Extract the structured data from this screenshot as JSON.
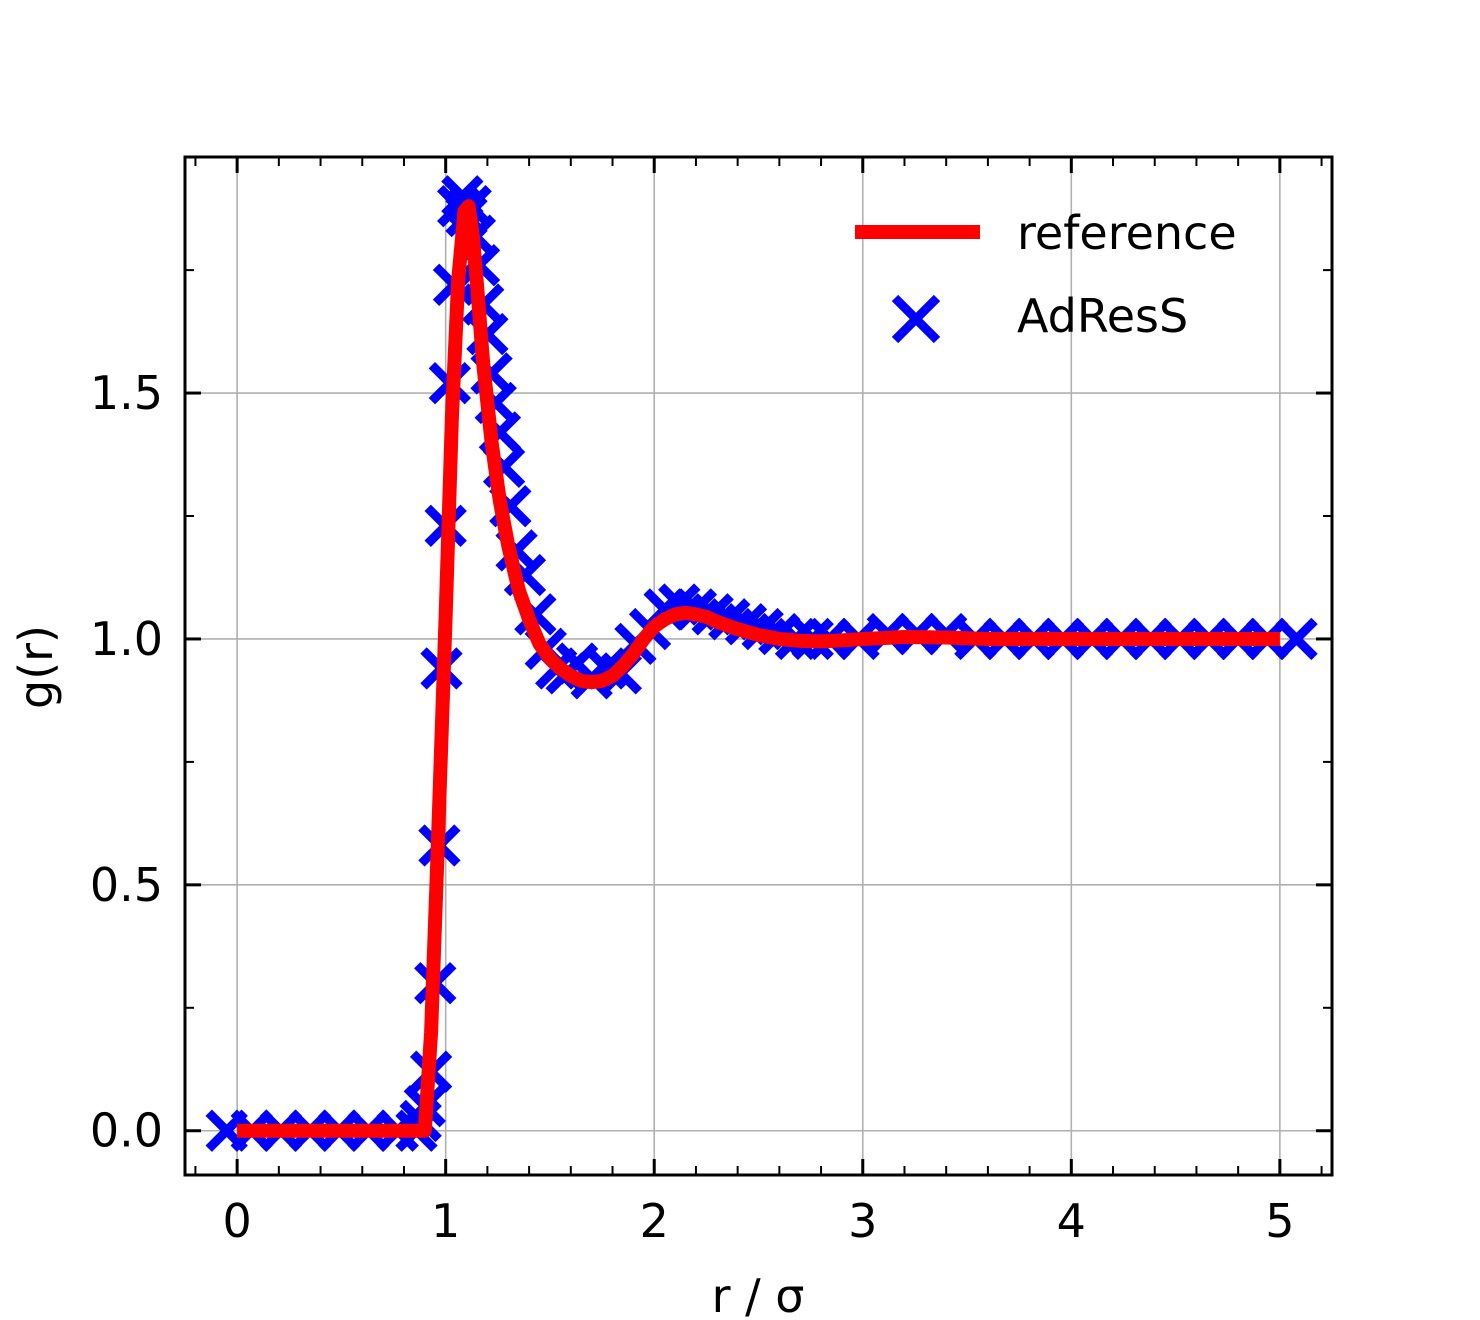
{
  "chart_data": {
    "type": "line",
    "xlabel": "r / σ",
    "ylabel": "g(r)",
    "xlim": [
      -0.25,
      5.25
    ],
    "ylim": [
      -0.09,
      1.98
    ],
    "grid": true,
    "legend_position": "top-right",
    "x_ticks": [
      {
        "value": 0,
        "label": "0"
      },
      {
        "value": 1,
        "label": "1"
      },
      {
        "value": 2,
        "label": "2"
      },
      {
        "value": 3,
        "label": "3"
      },
      {
        "value": 4,
        "label": "4"
      },
      {
        "value": 5,
        "label": "5"
      }
    ],
    "y_ticks": [
      {
        "value": 0.0,
        "label": "0.0"
      },
      {
        "value": 0.5,
        "label": "0.5"
      },
      {
        "value": 1.0,
        "label": "1.0"
      },
      {
        "value": 1.5,
        "label": "1.5"
      }
    ],
    "x_minor_ticks": [
      -0.2,
      0.2,
      0.4,
      0.6,
      0.8,
      1.2,
      1.4,
      1.6,
      1.8,
      2.2,
      2.4,
      2.6,
      2.8,
      3.2,
      3.4,
      3.6,
      3.8,
      4.2,
      4.4,
      4.6,
      4.8,
      5.2
    ],
    "y_minor_ticks": [
      0.25,
      0.75,
      1.25,
      1.75
    ],
    "series": [
      {
        "name": "reference",
        "kind": "line",
        "color": "#ff0000",
        "x": [
          0.0,
          0.2,
          0.4,
          0.6,
          0.8,
          0.9,
          0.93,
          0.96,
          1.0,
          1.03,
          1.06,
          1.09,
          1.11,
          1.13,
          1.15,
          1.18,
          1.22,
          1.26,
          1.3,
          1.35,
          1.4,
          1.45,
          1.5,
          1.55,
          1.6,
          1.65,
          1.7,
          1.75,
          1.8,
          1.85,
          1.9,
          1.95,
          2.0,
          2.05,
          2.1,
          2.15,
          2.2,
          2.25,
          2.3,
          2.4,
          2.5,
          2.6,
          2.7,
          2.8,
          2.9,
          3.0,
          3.2,
          3.4,
          3.6,
          3.8,
          4.0,
          4.2,
          4.4,
          4.6,
          4.8,
          5.0
        ],
        "y": [
          0.0,
          0.0,
          0.0,
          0.0,
          0.0,
          0.0,
          0.2,
          0.55,
          1.05,
          1.45,
          1.73,
          1.87,
          1.88,
          1.82,
          1.72,
          1.56,
          1.4,
          1.28,
          1.19,
          1.1,
          1.04,
          0.99,
          0.96,
          0.94,
          0.925,
          0.915,
          0.912,
          0.915,
          0.925,
          0.945,
          0.97,
          1.0,
          1.025,
          1.04,
          1.05,
          1.053,
          1.05,
          1.045,
          1.035,
          1.02,
          1.008,
          1.0,
          0.996,
          0.995,
          0.997,
          1.0,
          1.004,
          1.003,
          1.0,
          1.0,
          1.0,
          1.0,
          1.0,
          1.0,
          1.0,
          1.0
        ]
      },
      {
        "name": "AdResS",
        "kind": "scatter",
        "marker": "x",
        "color": "#0000ff",
        "x": [
          -0.05,
          0.07,
          0.21,
          0.35,
          0.49,
          0.63,
          0.77,
          0.86,
          0.88,
          0.9,
          0.93,
          0.95,
          0.97,
          0.98,
          1.0,
          1.02,
          1.04,
          1.06,
          1.08,
          1.1,
          1.12,
          1.14,
          1.16,
          1.18,
          1.2,
          1.22,
          1.24,
          1.26,
          1.28,
          1.31,
          1.34,
          1.38,
          1.43,
          1.48,
          1.53,
          1.58,
          1.63,
          1.7,
          1.77,
          1.84,
          1.91,
          1.98,
          2.05,
          2.12,
          2.2,
          2.28,
          2.36,
          2.44,
          2.52,
          2.6,
          2.68,
          2.76,
          2.84,
          2.98,
          3.12,
          3.26,
          3.4,
          3.54,
          3.68,
          3.82,
          3.96,
          4.1,
          4.24,
          4.38,
          4.52,
          4.66,
          4.8,
          4.94,
          5.08
        ],
        "y": [
          0.0,
          0.0,
          0.0,
          0.0,
          0.0,
          0.0,
          0.0,
          0.0,
          0.02,
          0.05,
          0.12,
          0.3,
          0.58,
          0.94,
          1.23,
          1.52,
          1.72,
          1.88,
          1.9,
          1.86,
          1.88,
          1.82,
          1.76,
          1.68,
          1.62,
          1.54,
          1.48,
          1.42,
          1.35,
          1.27,
          1.18,
          1.13,
          1.05,
          0.98,
          0.94,
          0.93,
          0.95,
          0.92,
          0.94,
          0.93,
          0.99,
          1.02,
          1.06,
          1.07,
          1.06,
          1.05,
          1.04,
          1.03,
          1.02,
          1.01,
          1.0,
          1.0,
          1.0,
          1.0,
          1.01,
          1.01,
          1.01,
          1.0,
          1.0,
          1.0,
          1.0,
          1.0,
          1.0,
          1.0,
          1.0,
          1.0,
          1.0,
          1.0,
          1.0
        ]
      }
    ]
  }
}
